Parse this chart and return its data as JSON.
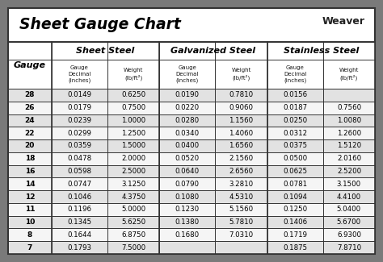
{
  "title": "Sheet Gauge Chart",
  "gauges": [
    28,
    26,
    24,
    22,
    20,
    18,
    16,
    14,
    12,
    11,
    10,
    8,
    7
  ],
  "sheet_steel": [
    [
      "0.0149",
      "0.6250"
    ],
    [
      "0.0179",
      "0.7500"
    ],
    [
      "0.0239",
      "1.0000"
    ],
    [
      "0.0299",
      "1.2500"
    ],
    [
      "0.0359",
      "1.5000"
    ],
    [
      "0.0478",
      "2.0000"
    ],
    [
      "0.0598",
      "2.5000"
    ],
    [
      "0.0747",
      "3.1250"
    ],
    [
      "0.1046",
      "4.3750"
    ],
    [
      "0.1196",
      "5.0000"
    ],
    [
      "0.1345",
      "5.6250"
    ],
    [
      "0.1644",
      "6.8750"
    ],
    [
      "0.1793",
      "7.5000"
    ]
  ],
  "galvanized_steel": [
    [
      "0.0190",
      "0.7810"
    ],
    [
      "0.0220",
      "0.9060"
    ],
    [
      "0.0280",
      "1.1560"
    ],
    [
      "0.0340",
      "1.4060"
    ],
    [
      "0.0400",
      "1.6560"
    ],
    [
      "0.0520",
      "2.1560"
    ],
    [
      "0.0640",
      "2.6560"
    ],
    [
      "0.0790",
      "3.2810"
    ],
    [
      "0.1080",
      "4.5310"
    ],
    [
      "0.1230",
      "5.1560"
    ],
    [
      "0.1380",
      "5.7810"
    ],
    [
      "0.1680",
      "7.0310"
    ],
    [
      "",
      ""
    ]
  ],
  "stainless_steel": [
    [
      "0.0156",
      ""
    ],
    [
      "0.0187",
      "0.7560"
    ],
    [
      "0.0250",
      "1.0080"
    ],
    [
      "0.0312",
      "1.2600"
    ],
    [
      "0.0375",
      "1.5120"
    ],
    [
      "0.0500",
      "2.0160"
    ],
    [
      "0.0625",
      "2.5200"
    ],
    [
      "0.0781",
      "3.1500"
    ],
    [
      "0.1094",
      "4.4100"
    ],
    [
      "0.1250",
      "5.0400"
    ],
    [
      "0.1406",
      "5.6700"
    ],
    [
      "0.1719",
      "6.9300"
    ],
    [
      "0.1875",
      "7.8710"
    ]
  ],
  "bg_outer": "#7a7a7a",
  "bg_white": "#ffffff",
  "bg_header_row": "#ffffff",
  "bg_data_light": "#e2e2e2",
  "bg_data_white": "#f5f5f5",
  "border_dark": "#333333",
  "border_med": "#888888",
  "text_dark": "#1a1a1a",
  "text_black": "#000000",
  "figsize": [
    4.74,
    3.25
  ],
  "dpi": 100
}
